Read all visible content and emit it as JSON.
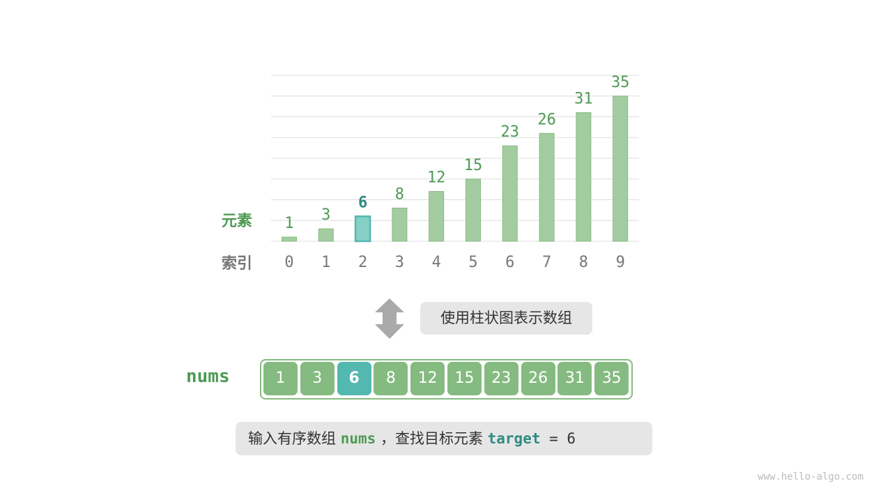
{
  "chart_data": {
    "type": "bar",
    "categories": [
      "0",
      "1",
      "2",
      "3",
      "4",
      "5",
      "6",
      "7",
      "8",
      "9"
    ],
    "values": [
      1,
      3,
      6,
      8,
      12,
      15,
      23,
      26,
      31,
      35
    ],
    "highlight_index": 2,
    "ylim": [
      0,
      40
    ],
    "grid": true,
    "ylabel": "元素",
    "xlabel": "索引"
  },
  "caption": "使用柱状图表示数组",
  "array": {
    "name": "nums",
    "values": [
      "1",
      "3",
      "6",
      "8",
      "12",
      "15",
      "23",
      "26",
      "31",
      "35"
    ],
    "highlight_index": 2
  },
  "prompt": {
    "prefix": "输入有序数组 ",
    "nums": "nums",
    "middle": " ，查找目标元素 ",
    "target": "target",
    "suffix": " = 6"
  },
  "watermark": "www.hello-algo.com",
  "colors": {
    "bar": "#a3cda0",
    "bar_stroke": "#85bb80",
    "highlight": "#87d0c6",
    "highlight_stroke": "#52b8b0",
    "green_text": "#4e9a54",
    "teal_text": "#2f8c83"
  }
}
